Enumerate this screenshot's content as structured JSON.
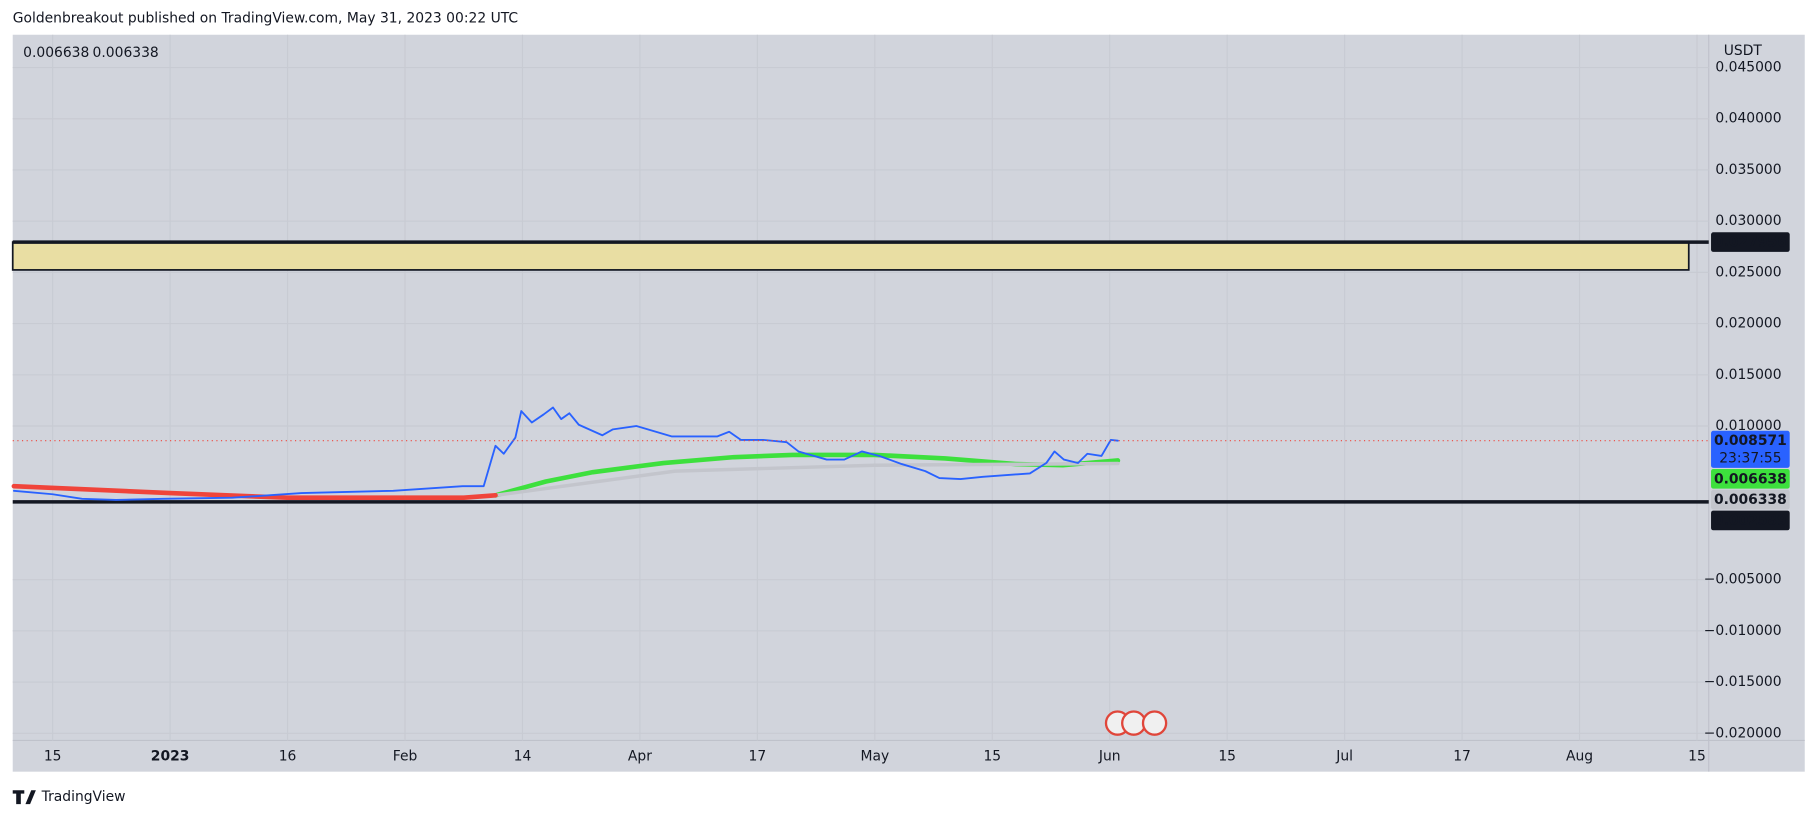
{
  "header": {
    "title": "Goldenbreakout published on TradingView.com, May 31, 2023 00:22 UTC"
  },
  "footer": {
    "brand": "TradingView"
  },
  "chart_data": {
    "type": "line",
    "currency": "USDT",
    "countdown": "23:37:55",
    "grid": true,
    "xlim": [
      -0.34,
      14.1
    ],
    "ylim": [
      -0.0207,
      0.0482
    ],
    "xticks": [
      {
        "value": 0,
        "label": "15"
      },
      {
        "value": 1,
        "label": "2023"
      },
      {
        "value": 2,
        "label": "16"
      },
      {
        "value": 3,
        "label": "Feb"
      },
      {
        "value": 4,
        "label": "14"
      },
      {
        "value": 5,
        "label": "Apr"
      },
      {
        "value": 6,
        "label": "17"
      },
      {
        "value": 7,
        "label": "May"
      },
      {
        "value": 8,
        "label": "15"
      },
      {
        "value": 9,
        "label": "Jun"
      },
      {
        "value": 10,
        "label": "15"
      },
      {
        "value": 11,
        "label": "Jul"
      },
      {
        "value": 12,
        "label": "17"
      },
      {
        "value": 13,
        "label": "Aug"
      },
      {
        "value": 14,
        "label": "15"
      }
    ],
    "yticks": [
      {
        "value": 0.045,
        "label": "0.045000"
      },
      {
        "value": 0.04,
        "label": "0.040000"
      },
      {
        "value": 0.035,
        "label": "0.035000"
      },
      {
        "value": 0.03,
        "label": "0.030000"
      },
      {
        "value": 0.025,
        "label": "0.025000"
      },
      {
        "value": 0.02,
        "label": "0.020000"
      },
      {
        "value": 0.015,
        "label": "0.015000"
      },
      {
        "value": 0.01,
        "label": "0.010000"
      },
      {
        "value": -0.005,
        "label": "−0.005000"
      },
      {
        "value": -0.01,
        "label": "−0.010000"
      },
      {
        "value": -0.015,
        "label": "−0.015000"
      },
      {
        "value": -0.02,
        "label": "−0.020000"
      }
    ],
    "series": [
      {
        "color": "#2962ff",
        "width": 1.6,
        "x": [
          -0.33,
          0,
          0.25,
          0.54,
          0.94,
          1.53,
          2.12,
          2.9,
          3.49,
          3.67,
          3.77,
          3.84,
          3.94,
          3.99,
          4.08,
          4.18,
          4.26,
          4.33,
          4.4,
          4.48,
          4.68,
          4.77,
          4.97,
          5.27,
          5.66,
          5.76,
          5.86,
          6.05,
          6.25,
          6.35,
          6.59,
          6.74,
          6.89,
          7.04,
          7.23,
          7.43,
          7.55,
          7.73,
          7.92,
          8.32,
          8.46,
          8.53,
          8.61,
          8.73,
          8.81,
          8.93,
          9.01,
          9.07
        ],
        "values": [
          0.00368,
          0.00334,
          0.00289,
          0.00278,
          0.00289,
          0.003,
          0.00345,
          0.00368,
          0.00413,
          0.00413,
          0.00807,
          0.00729,
          0.00887,
          0.01146,
          0.01034,
          0.01113,
          0.01181,
          0.01068,
          0.01124,
          0.01012,
          0.0091,
          0.00967,
          0.01,
          0.00898,
          0.00898,
          0.00944,
          0.00864,
          0.00864,
          0.00842,
          0.00752,
          0.00673,
          0.00673,
          0.00752,
          0.00707,
          0.00628,
          0.0056,
          0.00492,
          0.00481,
          0.00504,
          0.00537,
          0.00639,
          0.00752,
          0.00673,
          0.00639,
          0.00729,
          0.00707,
          0.00864,
          0.008571
        ]
      },
      {
        "color": "#3de03d",
        "width": 4,
        "x": [
          3.77,
          4.2,
          4.6,
          5.2,
          5.8,
          6.3,
          7.0,
          7.6,
          8.2,
          8.6,
          9.07
        ],
        "values": [
          0.00323,
          0.00458,
          0.00549,
          0.00639,
          0.00696,
          0.00718,
          0.00718,
          0.00684,
          0.00628,
          0.00617,
          0.006638
        ]
      },
      {
        "color": "#c3c5cc",
        "width": 3,
        "x": [
          3.77,
          5.3,
          7.0,
          9.07
        ],
        "values": [
          0.00323,
          0.0056,
          0.00617,
          0.006338
        ]
      },
      {
        "color": "#f0443a",
        "width": 4,
        "x": [
          -0.33,
          1,
          2,
          3.5,
          3.77
        ],
        "values": [
          0.00413,
          0.00345,
          0.003,
          0.003,
          0.00323
        ]
      }
    ],
    "levels": [
      {
        "value": 0.027956,
        "color": "#131722"
      },
      {
        "value": 0.002589,
        "color": "#131722"
      }
    ],
    "zone": {
      "bottom": 0.02524,
      "x_end": 13.93,
      "color": "#e9dea3"
    }
  }
}
